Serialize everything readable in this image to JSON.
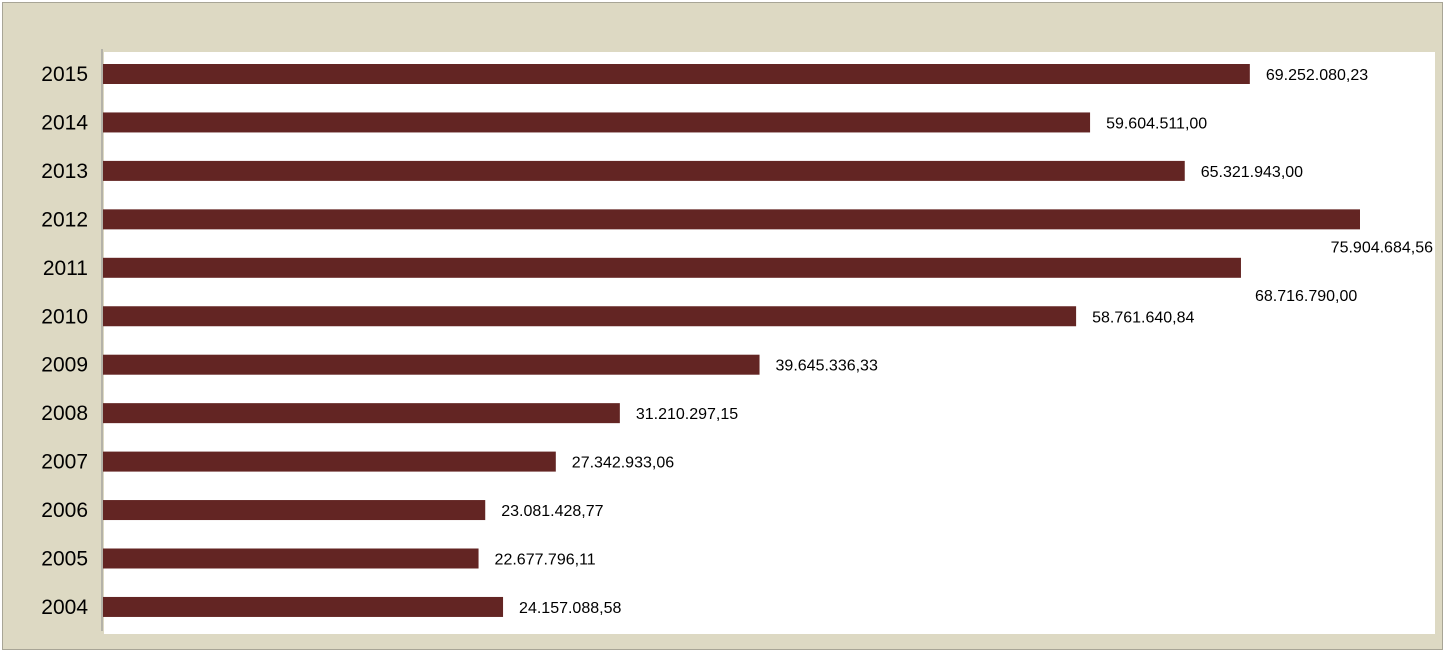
{
  "chart_data": {
    "type": "bar",
    "orientation": "horizontal",
    "title": "",
    "xlabel": "",
    "ylabel": "",
    "categories": [
      "2015",
      "2014",
      "2013",
      "2012",
      "2011",
      "2010",
      "2009",
      "2008",
      "2007",
      "2006",
      "2005",
      "2004"
    ],
    "values": [
      69252080.23,
      59604511.0,
      65321943.0,
      75904684.56,
      68716790.0,
      58761640.84,
      39645336.33,
      31210297.15,
      27342933.06,
      23081428.77,
      22677796.11,
      24157088.58
    ],
    "value_labels": [
      "69.252.080,23",
      "59.604.511,00",
      "65.321.943,00",
      "75.904.684,56",
      "68.716.790,00",
      "58.761.640,84",
      "39.645.336,33",
      "31.210.297,15",
      "27.342.933,06",
      "23.081.428,77",
      "22.677.796,11",
      "24.157.088,58"
    ],
    "xlim": [
      0,
      81000000
    ],
    "grid": false,
    "legend": "none",
    "colors": {
      "bar": "#632523",
      "frame": "#ddd9c3",
      "plot_area": "#ffffff",
      "axis": "#8c8c8c"
    }
  }
}
